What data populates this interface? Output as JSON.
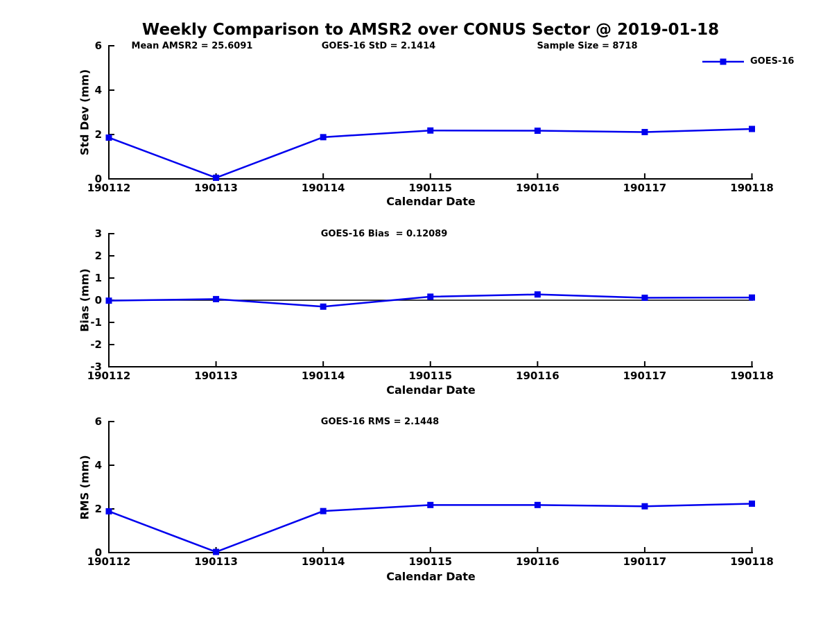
{
  "title": "Weekly Comparison to AMSR2 over CONUS Sector @ 2019-01-18",
  "legend": {
    "label": "GOES-16",
    "position": "top-right",
    "color": "#0000EE"
  },
  "colors": {
    "series": "#0000EE",
    "axis": "#000000",
    "zero_line": "#000000",
    "background": "#FFFFFF"
  },
  "chart_data": [
    {
      "type": "line",
      "id": "std-dev",
      "ylabel": "Std Dev (mm)",
      "xlabel": "Calendar Date",
      "ylim": [
        0,
        6
      ],
      "yticks": [
        0,
        2,
        4,
        6
      ],
      "grid": false,
      "categories": [
        "190112",
        "190113",
        "190114",
        "190115",
        "190116",
        "190117",
        "190118"
      ],
      "annotations": [
        "Mean AMSR2 = 25.6091",
        "GOES-16 StD = 2.1414",
        "Sample Size = 8718"
      ],
      "series": [
        {
          "name": "GOES-16",
          "values": [
            1.86,
            0.05,
            1.88,
            2.18,
            2.17,
            2.11,
            2.25
          ]
        }
      ]
    },
    {
      "type": "line",
      "id": "bias",
      "ylabel": "Bias (mm)",
      "xlabel": "Calendar Date",
      "ylim": [
        -3,
        3
      ],
      "yticks": [
        3,
        2,
        1,
        0,
        -1,
        -2,
        -3
      ],
      "grid": false,
      "zero_line": true,
      "categories": [
        "190112",
        "190113",
        "190114",
        "190115",
        "190116",
        "190117",
        "190118"
      ],
      "annotations": [
        "GOES-16 Bias  = 0.12089"
      ],
      "series": [
        {
          "name": "GOES-16",
          "values": [
            -0.02,
            0.05,
            -0.29,
            0.16,
            0.26,
            0.11,
            0.12
          ]
        }
      ]
    },
    {
      "type": "line",
      "id": "rms",
      "ylabel": "RMS (mm)",
      "xlabel": "Calendar Date",
      "ylim": [
        0,
        6
      ],
      "yticks": [
        0,
        2,
        4,
        6
      ],
      "grid": false,
      "categories": [
        "190112",
        "190113",
        "190114",
        "190115",
        "190116",
        "190117",
        "190118"
      ],
      "annotations": [
        "GOES-16 RMS = 2.1448"
      ],
      "series": [
        {
          "name": "GOES-16",
          "values": [
            1.89,
            0.03,
            1.9,
            2.18,
            2.18,
            2.12,
            2.24
          ]
        }
      ]
    }
  ]
}
